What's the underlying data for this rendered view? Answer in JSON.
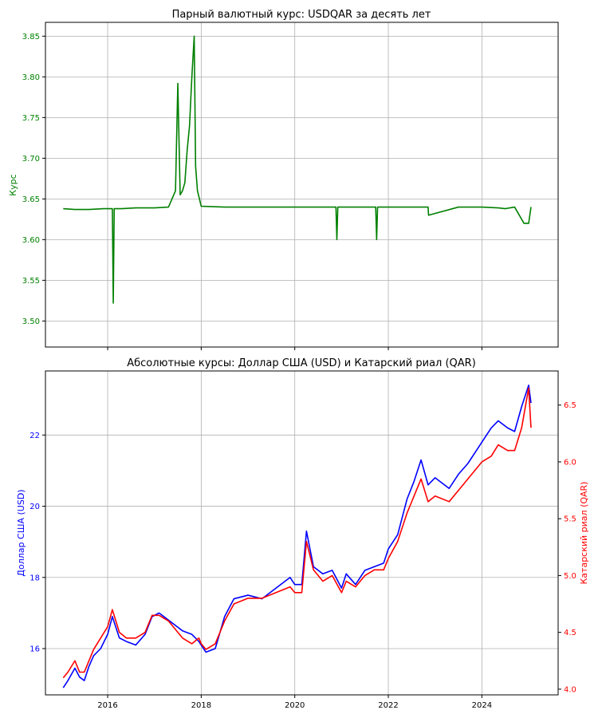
{
  "chart_data": [
    {
      "type": "line",
      "title": "Парный валютный курс: USDQAR за десять лет",
      "xlabel": "",
      "ylabel": "Курс",
      "ylabel_color": "#008000",
      "grid": true,
      "xlim": [
        2014.67,
        2025.63
      ],
      "ylim": [
        3.468,
        3.867
      ],
      "xticks": [
        2016,
        2018,
        2020,
        2022,
        2024
      ],
      "xtick_labels_visible": false,
      "yticks": [
        3.5,
        3.55,
        3.6,
        3.65,
        3.7,
        3.75,
        3.8,
        3.85
      ],
      "ytick_labels": [
        "3.50",
        "3.55",
        "3.60",
        "3.65",
        "3.70",
        "3.75",
        "3.80",
        "3.85"
      ],
      "series": [
        {
          "color": "#008000",
          "x": [
            2015.05,
            2015.3,
            2015.6,
            2015.9,
            2016.1,
            2016.12,
            2016.14,
            2016.3,
            2016.6,
            2017.0,
            2017.3,
            2017.45,
            2017.5,
            2017.55,
            2017.6,
            2017.65,
            2017.7,
            2017.75,
            2017.8,
            2017.85,
            2017.88,
            2017.92,
            2018.0,
            2018.5,
            2019.0,
            2019.5,
            2020.0,
            2020.5,
            2020.88,
            2020.9,
            2020.92,
            2021.5,
            2021.73,
            2021.75,
            2021.77,
            2022.3,
            2022.85,
            2022.86,
            2023.5,
            2024.0,
            2024.35,
            2024.5,
            2024.7,
            2024.9,
            2025.0,
            2025.05
          ],
          "y": [
            3.638,
            3.637,
            3.637,
            3.638,
            3.638,
            3.522,
            3.638,
            3.638,
            3.639,
            3.639,
            3.64,
            3.66,
            3.792,
            3.655,
            3.66,
            3.67,
            3.71,
            3.74,
            3.8,
            3.85,
            3.69,
            3.66,
            3.641,
            3.64,
            3.64,
            3.64,
            3.64,
            3.64,
            3.64,
            3.6,
            3.64,
            3.64,
            3.64,
            3.6,
            3.64,
            3.64,
            3.64,
            3.63,
            3.64,
            3.64,
            3.639,
            3.638,
            3.64,
            3.62,
            3.62,
            3.64
          ]
        }
      ],
      "annotations": []
    },
    {
      "type": "line",
      "title": "Абсолютные курсы: Доллар США (USD) и Катарский риал (QAR)",
      "xlabel": "",
      "ylabel": "Доллар США (USD)",
      "ylabel_color": "#0000ff",
      "y2label": "Катарский риал (QAR)",
      "y2label_color": "#ff0000",
      "grid": true,
      "xlim": [
        2014.67,
        2025.63
      ],
      "xticks": [
        2016,
        2018,
        2020,
        2022,
        2024
      ],
      "xtick_labels": [
        "2016",
        "2018",
        "2020",
        "2022",
        "2024"
      ],
      "ylim": [
        14.7,
        23.8
      ],
      "yticks": [
        16,
        18,
        20,
        22
      ],
      "ytick_labels": [
        "16",
        "18",
        "20",
        "22"
      ],
      "y2lim": [
        3.95,
        6.8
      ],
      "y2ticks": [
        4.0,
        4.5,
        5.0,
        5.5,
        6.0,
        6.5
      ],
      "y2tick_labels": [
        "4.0",
        "4.5",
        "5.0",
        "5.5",
        "6.0",
        "6.5"
      ],
      "series": [
        {
          "axis": "left",
          "color": "#0000ff",
          "x": [
            2015.05,
            2015.15,
            2015.3,
            2015.4,
            2015.5,
            2015.6,
            2015.7,
            2015.85,
            2016.0,
            2016.1,
            2016.25,
            2016.4,
            2016.6,
            2016.8,
            2016.95,
            2017.1,
            2017.3,
            2017.5,
            2017.6,
            2017.8,
            2017.95,
            2018.0,
            2018.1,
            2018.3,
            2018.5,
            2018.7,
            2019.0,
            2019.3,
            2019.6,
            2019.9,
            2020.0,
            2020.15,
            2020.25,
            2020.4,
            2020.6,
            2020.8,
            2021.0,
            2021.1,
            2021.3,
            2021.5,
            2021.7,
            2021.9,
            2022.0,
            2022.2,
            2022.4,
            2022.55,
            2022.7,
            2022.85,
            2023.0,
            2023.3,
            2023.5,
            2023.7,
            2023.9,
            2024.0,
            2024.2,
            2024.35,
            2024.55,
            2024.7,
            2024.85,
            2025.0,
            2025.05
          ],
          "values": [
            14.9,
            15.1,
            15.45,
            15.2,
            15.1,
            15.5,
            15.8,
            16.0,
            16.4,
            16.9,
            16.3,
            16.2,
            16.1,
            16.4,
            16.9,
            17.0,
            16.8,
            16.6,
            16.5,
            16.4,
            16.2,
            16.1,
            15.9,
            16.0,
            16.9,
            17.4,
            17.5,
            17.4,
            17.7,
            18.0,
            17.8,
            17.8,
            19.3,
            18.3,
            18.1,
            18.2,
            17.7,
            18.1,
            17.8,
            18.2,
            18.3,
            18.4,
            18.8,
            19.2,
            20.2,
            20.7,
            21.3,
            20.6,
            20.8,
            20.5,
            20.9,
            21.2,
            21.6,
            21.8,
            22.2,
            22.4,
            22.2,
            22.1,
            22.8,
            23.4,
            22.9
          ]
        },
        {
          "axis": "right",
          "color": "#ff0000",
          "x": [
            2015.05,
            2015.15,
            2015.3,
            2015.4,
            2015.5,
            2015.6,
            2015.7,
            2015.85,
            2016.0,
            2016.1,
            2016.25,
            2016.4,
            2016.6,
            2016.8,
            2016.95,
            2017.1,
            2017.3,
            2017.5,
            2017.6,
            2017.8,
            2017.95,
            2018.0,
            2018.1,
            2018.3,
            2018.5,
            2018.7,
            2019.0,
            2019.3,
            2019.6,
            2019.9,
            2020.0,
            2020.15,
            2020.25,
            2020.4,
            2020.6,
            2020.8,
            2021.0,
            2021.1,
            2021.3,
            2021.5,
            2021.7,
            2021.9,
            2022.0,
            2022.2,
            2022.4,
            2022.55,
            2022.7,
            2022.85,
            2023.0,
            2023.3,
            2023.5,
            2023.7,
            2023.9,
            2024.0,
            2024.2,
            2024.35,
            2024.55,
            2024.7,
            2024.85,
            2025.0,
            2025.05
          ],
          "values": [
            4.1,
            4.15,
            4.25,
            4.15,
            4.15,
            4.25,
            4.35,
            4.45,
            4.55,
            4.7,
            4.5,
            4.45,
            4.45,
            4.5,
            4.65,
            4.65,
            4.6,
            4.5,
            4.45,
            4.4,
            4.45,
            4.4,
            4.35,
            4.4,
            4.6,
            4.75,
            4.8,
            4.8,
            4.85,
            4.9,
            4.85,
            4.85,
            5.3,
            5.05,
            4.95,
            5.0,
            4.85,
            4.95,
            4.9,
            5.0,
            5.05,
            5.05,
            5.15,
            5.3,
            5.55,
            5.7,
            5.85,
            5.65,
            5.7,
            5.65,
            5.75,
            5.85,
            5.95,
            6.0,
            6.05,
            6.15,
            6.1,
            6.1,
            6.3,
            6.65,
            6.3
          ]
        }
      ],
      "annotations": []
    }
  ]
}
